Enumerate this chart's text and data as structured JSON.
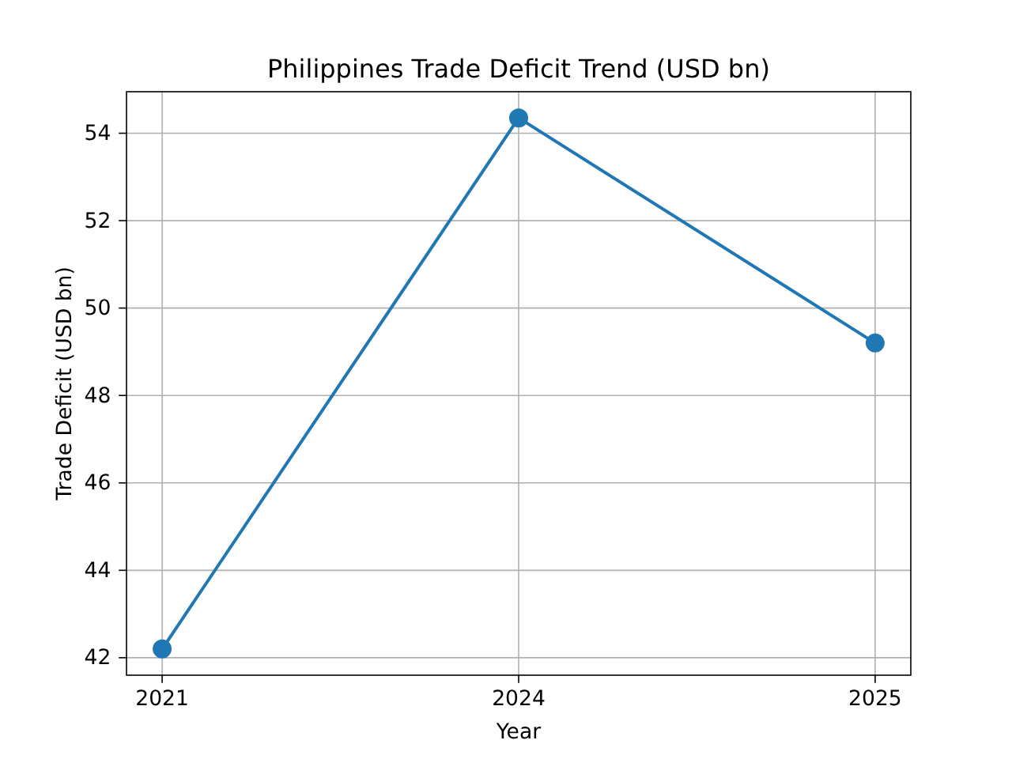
{
  "chart_data": {
    "type": "line",
    "title": "Philippines Trade Deficit Trend (USD bn)",
    "xlabel": "Year",
    "ylabel": "Trade Deficit (USD bn)",
    "categories": [
      "2021",
      "2024",
      "2025"
    ],
    "series": [
      {
        "color": "#1f77b4",
        "values": [
          42.2,
          54.35,
          49.2
        ]
      }
    ],
    "ylim": [
      41.6,
      54.95
    ],
    "yticks": [
      42,
      44,
      46,
      48,
      50,
      52,
      54
    ],
    "grid": true,
    "marker": "circle"
  }
}
